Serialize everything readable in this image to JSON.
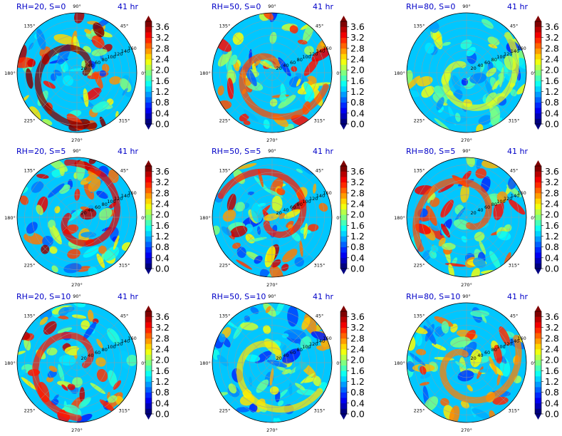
{
  "figure": {
    "colorbar": {
      "ticks": [
        "0.0",
        "0.4",
        "0.8",
        "1.2",
        "1.6",
        "2.0",
        "2.4",
        "2.8",
        "3.2",
        "3.6"
      ],
      "min": 0.0,
      "max": 3.8,
      "colormap": "jet"
    },
    "angle_labels": [
      "90°",
      "45°",
      "0°",
      "315°",
      "270°",
      "225°",
      "180°",
      "135°"
    ],
    "radial_labels": [
      "20",
      "40",
      "60",
      "80",
      "100",
      "120",
      "140",
      "160"
    ],
    "time_label": "41 hr",
    "title_color": "#0000c8"
  },
  "chart_data": [
    {
      "type": "heatmap",
      "projection": "polar",
      "title": "RH=20, S=0",
      "time": "41 hr",
      "pattern": "scattered small cells, high values throughout",
      "intensity": 0.95
    },
    {
      "type": "heatmap",
      "projection": "polar",
      "title": "RH=50, S=0",
      "time": "41 hr",
      "pattern": "spiral bands, moderate values",
      "intensity": 0.75
    },
    {
      "type": "heatmap",
      "projection": "polar",
      "title": "RH=80, S=0",
      "time": "41 hr",
      "pattern": "weak spiral, low values",
      "intensity": 0.55
    },
    {
      "type": "heatmap",
      "projection": "polar",
      "title": "RH=20, S=5",
      "time": "41 hr",
      "pattern": "strong band north and west",
      "intensity": 0.85
    },
    {
      "type": "heatmap",
      "projection": "polar",
      "title": "RH=50, S=5",
      "time": "41 hr",
      "pattern": "curved band west-southwest",
      "intensity": 0.8
    },
    {
      "type": "heatmap",
      "projection": "polar",
      "title": "RH=80, S=5",
      "time": "41 hr",
      "pattern": "crescent band on west side",
      "intensity": 0.75
    },
    {
      "type": "heatmap",
      "projection": "polar",
      "title": "RH=20, S=10",
      "time": "41 hr",
      "pattern": "maxima east and northwest",
      "intensity": 0.8
    },
    {
      "type": "heatmap",
      "projection": "polar",
      "title": "RH=50, S=10",
      "time": "41 hr",
      "pattern": "band arc northwest",
      "intensity": 0.6
    },
    {
      "type": "heatmap",
      "projection": "polar",
      "title": "RH=80, S=10",
      "time": "41 hr",
      "pattern": "band arc northwest and west",
      "intensity": 0.7
    }
  ]
}
